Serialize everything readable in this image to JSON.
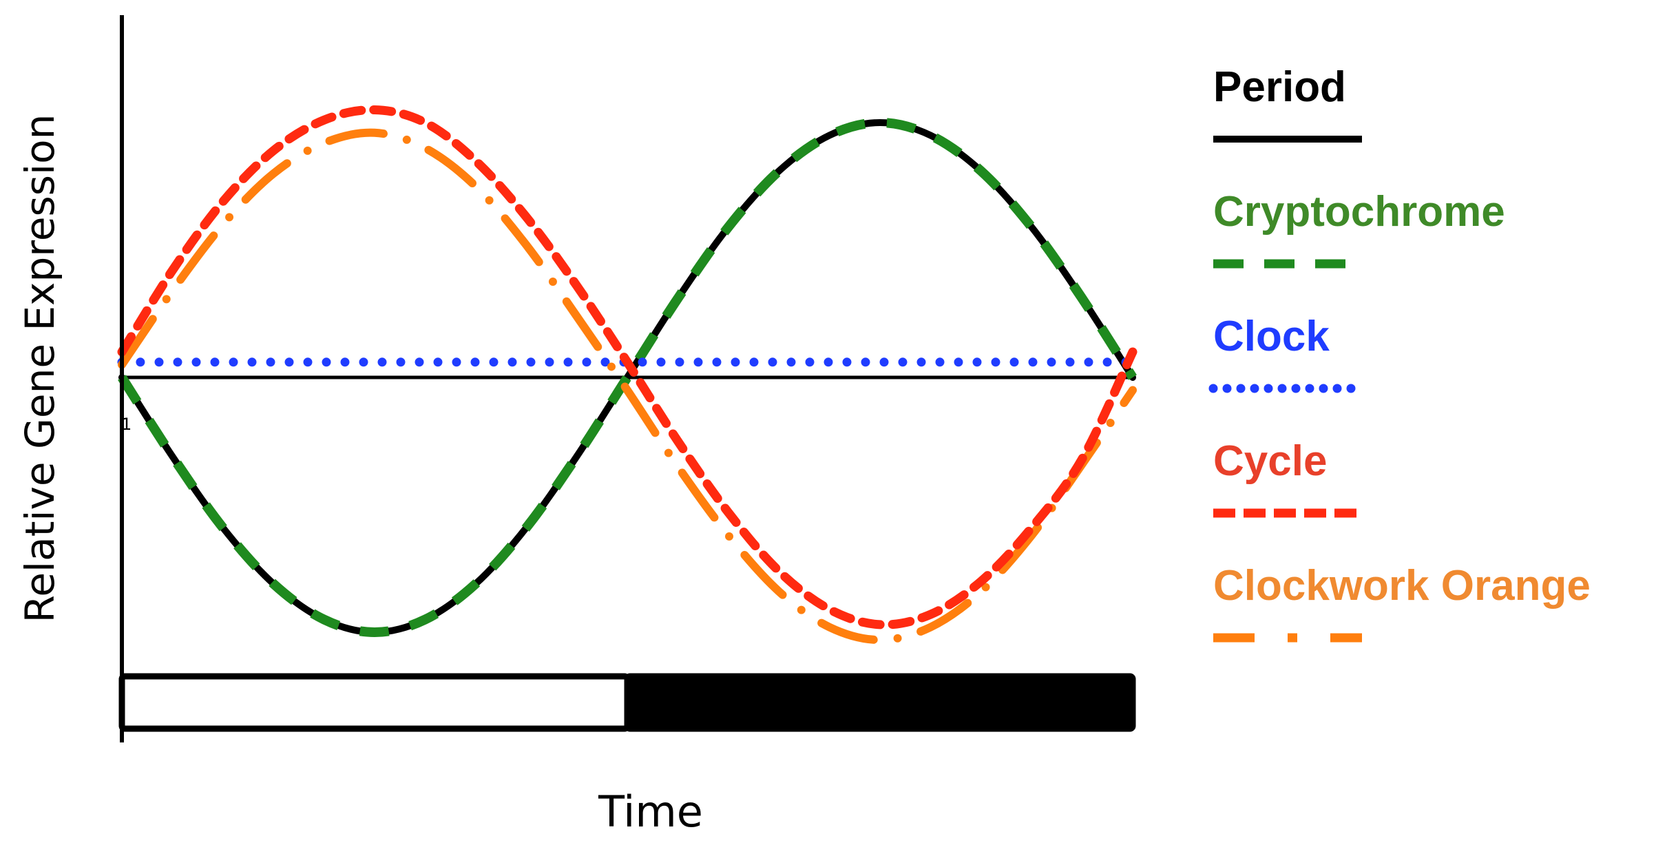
{
  "chart_data": {
    "type": "line",
    "title": "",
    "xlabel": "Time",
    "ylabel": "Relative Gene Expression",
    "y_tick_label": "1",
    "x": [
      0,
      0.05,
      0.1,
      0.15,
      0.2,
      0.25,
      0.3,
      0.35,
      0.4,
      0.45,
      0.5,
      0.55,
      0.6,
      0.65,
      0.7,
      0.75,
      0.8,
      0.85,
      0.9,
      0.95,
      1
    ],
    "xlim": [
      0,
      1
    ],
    "ylim": [
      -1.1,
      1.1
    ],
    "grid": false,
    "legend_position": "right",
    "series": [
      {
        "name": "Period",
        "color": "#000000",
        "style": "solid",
        "values": [
          0,
          -0.31,
          -0.59,
          -0.81,
          -0.95,
          -1,
          -0.95,
          -0.81,
          -0.59,
          -0.31,
          0,
          0.31,
          0.59,
          0.81,
          0.95,
          1,
          0.95,
          0.81,
          0.59,
          0.31,
          0
        ]
      },
      {
        "name": "Cryptochrome",
        "color": "#1f8a1f",
        "style": "dashed",
        "values": [
          0,
          -0.31,
          -0.59,
          -0.81,
          -0.95,
          -1,
          -0.95,
          -0.81,
          -0.59,
          -0.31,
          0,
          0.31,
          0.59,
          0.81,
          0.95,
          1,
          0.95,
          0.81,
          0.59,
          0.31,
          0
        ]
      },
      {
        "name": "Clock",
        "color": "#1f3cff",
        "style": "dotted",
        "values": [
          0.06,
          0.06,
          0.06,
          0.06,
          0.06,
          0.06,
          0.06,
          0.06,
          0.06,
          0.06,
          0.06,
          0.06,
          0.06,
          0.06,
          0.06,
          0.06,
          0.06,
          0.06,
          0.06,
          0.06,
          0.06
        ]
      },
      {
        "name": "Cycle",
        "color": "#ff2a10",
        "style": "short-dashed",
        "values": [
          0.1,
          0.42,
          0.69,
          0.89,
          1.01,
          1.05,
          1.0,
          0.85,
          0.63,
          0.36,
          0.06,
          -0.25,
          -0.53,
          -0.76,
          -0.91,
          -0.97,
          -0.93,
          -0.8,
          -0.59,
          -0.32,
          0.1
        ]
      },
      {
        "name": "Clockwork Orange",
        "color": "#ff7f0e",
        "style": "dash-dot",
        "values": [
          0.05,
          0.34,
          0.6,
          0.8,
          0.92,
          0.96,
          0.9,
          0.75,
          0.52,
          0.24,
          -0.05,
          -0.35,
          -0.62,
          -0.84,
          -0.98,
          -1.03,
          -0.98,
          -0.84,
          -0.62,
          -0.34,
          -0.05
        ]
      }
    ],
    "light_dark_bar": {
      "segments": [
        {
          "phase": "light",
          "start": 0,
          "end": 0.5,
          "fill": "#ffffff"
        },
        {
          "phase": "dark",
          "start": 0.5,
          "end": 1,
          "fill": "#000000"
        }
      ]
    }
  }
}
